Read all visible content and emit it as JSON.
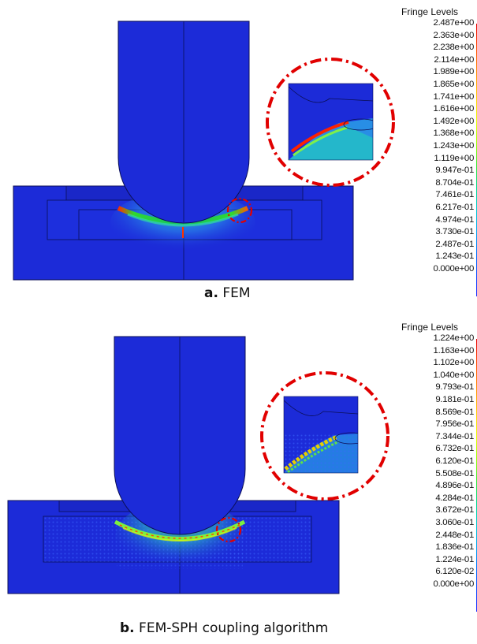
{
  "panels": [
    {
      "legend_title": "Fringe Levels",
      "levels": [
        "2.487e+00",
        "2.363e+00",
        "2.238e+00",
        "2.114e+00",
        "1.989e+00",
        "1.865e+00",
        "1.741e+00",
        "1.616e+00",
        "1.492e+00",
        "1.368e+00",
        "1.243e+00",
        "1.119e+00",
        "9.947e-01",
        "8.704e-01",
        "7.461e-01",
        "6.217e-01",
        "4.974e-01",
        "3.730e-01",
        "2.487e-01",
        "1.243e-01",
        "0.000e+00"
      ],
      "caption_prefix": "a.",
      "caption_text": "FEM"
    },
    {
      "legend_title": "Fringe Levels",
      "levels": [
        "1.224e+00",
        "1.163e+00",
        "1.102e+00",
        "1.040e+00",
        "9.793e-01",
        "9.181e-01",
        "8.569e-01",
        "7.956e-01",
        "7.344e-01",
        "6.732e-01",
        "6.120e-01",
        "5.508e-01",
        "4.896e-01",
        "4.284e-01",
        "3.672e-01",
        "3.060e-01",
        "2.448e-01",
        "1.836e-01",
        "1.224e-01",
        "6.120e-02",
        "0.000e+00"
      ],
      "caption_prefix": "b.",
      "caption_text": "FEM-SPH coupling algorithm"
    }
  ],
  "colors": {
    "body_blue": "#1c2bd8",
    "dark_blue": "#1722b0",
    "highlight_red": "#e10000"
  }
}
